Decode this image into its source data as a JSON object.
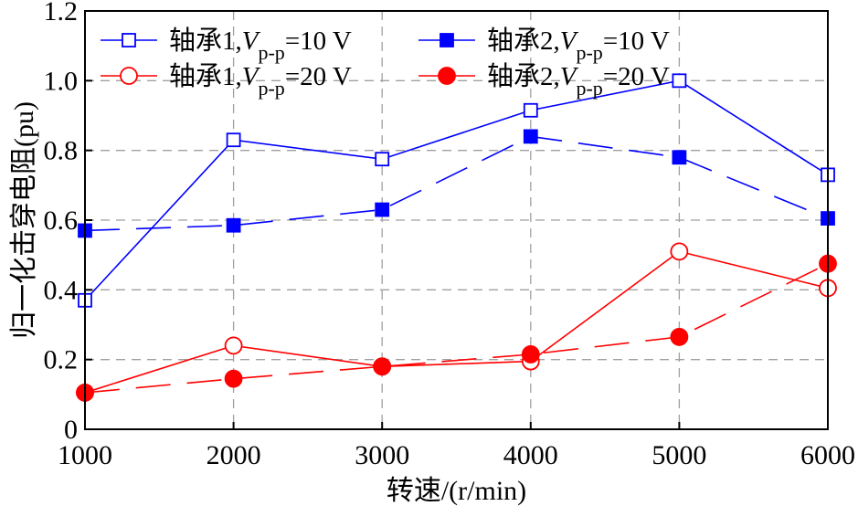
{
  "chart_data": {
    "type": "line",
    "xlabel": "转速/(r/min)",
    "ylabel": "归一化击穿电阻(pu)",
    "x": [
      1000,
      2000,
      3000,
      4000,
      5000,
      6000
    ],
    "xticks": [
      "1000",
      "2000",
      "3000",
      "4000",
      "5000",
      "6000"
    ],
    "yticks": [
      "0",
      "0.2",
      "0.4",
      "0.6",
      "0.8",
      "1.0",
      "1.2"
    ],
    "xlim": [
      1000,
      6000
    ],
    "ylim": [
      0,
      1.2
    ],
    "grid": true,
    "legend_position": "top",
    "series": [
      {
        "name": "轴承1,Vp-p=10 V",
        "legend": {
          "prefix": "轴承1,",
          "var": "V",
          "sub": "p-p",
          "suffix": "=10 V"
        },
        "values": [
          0.37,
          0.83,
          0.775,
          0.915,
          1.0,
          0.73
        ],
        "color": "#0000ff",
        "marker": "square-open",
        "line": "solid"
      },
      {
        "name": "轴承2,Vp-p=10 V",
        "legend": {
          "prefix": "轴承2,",
          "var": "V",
          "sub": "p-p",
          "suffix": "=10 V"
        },
        "values": [
          0.57,
          0.585,
          0.63,
          0.84,
          0.78,
          0.605
        ],
        "color": "#0000ff",
        "marker": "square-filled",
        "line": "dashed"
      },
      {
        "name": "轴承1,Vp-p=20 V",
        "legend": {
          "prefix": "轴承1,",
          "var": "V",
          "sub": "p-p",
          "suffix": "=20 V"
        },
        "values": [
          0.105,
          0.24,
          0.18,
          0.195,
          0.51,
          0.405
        ],
        "color": "#ff0000",
        "marker": "circle-open",
        "line": "solid"
      },
      {
        "name": "轴承2,Vp-p=20 V",
        "legend": {
          "prefix": "轴承2,",
          "var": "V",
          "sub": "p-p",
          "suffix": "=20 V"
        },
        "values": [
          0.105,
          0.145,
          0.18,
          0.215,
          0.265,
          0.475
        ],
        "color": "#ff0000",
        "marker": "circle-filled",
        "line": "dashed"
      }
    ]
  }
}
